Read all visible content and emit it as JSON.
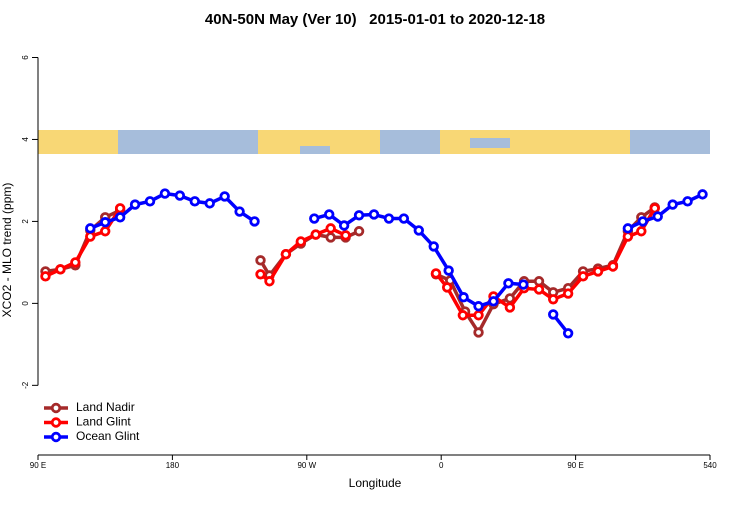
{
  "chart_data": {
    "type": "line",
    "title": "40N-50N May (Ver 10)   2015-01-01 to 2020-12-18",
    "xlabel": "Longitude",
    "ylabel": "XCO2 - MLO trend (ppm)",
    "xlim": [
      90,
      540
    ],
    "ylim": [
      -3.7,
      6.5
    ],
    "xticks": [
      {
        "value": 90,
        "label": "90 E"
      },
      180,
      {
        "value": 270,
        "label": "90 W"
      },
      {
        "value": 360,
        "label": "0"
      },
      {
        "value": 450,
        "label": "90 E"
      },
      540
    ],
    "yticks": [
      -2,
      0,
      2,
      4,
      6
    ],
    "legend": "bottom-left",
    "series": [
      {
        "name": "Land Nadir",
        "color": "#a52a2a",
        "x": [
          95,
          105,
          115,
          125,
          135,
          145,
          190,
          239,
          245,
          256,
          266,
          276,
          286,
          296,
          305,
          330,
          356.5,
          366,
          376,
          385,
          395,
          406,
          415.5,
          425.5,
          435,
          445,
          455,
          465,
          475,
          485,
          494,
          503
        ],
        "values": [
          0.78,
          0.83,
          0.93,
          1.78,
          2.1,
          2.27,
          null,
          1.05,
          0.68,
          1.2,
          1.46,
          1.68,
          1.61,
          1.61,
          1.76,
          null,
          0.71,
          0.56,
          -0.2,
          -0.71,
          -0.02,
          0.12,
          0.54,
          0.54,
          0.27,
          0.37,
          0.78,
          0.85,
          0.93,
          1.76,
          2.1,
          2.34
        ]
      },
      {
        "name": "Land Glint",
        "color": "#ff0000",
        "x": [
          95,
          105,
          115,
          125,
          135,
          145,
          190,
          239,
          245,
          256,
          266,
          276,
          286,
          296,
          330,
          356.5,
          364,
          374.5,
          385,
          395,
          406,
          415.5,
          425.5,
          435,
          445,
          455,
          465,
          475,
          485,
          494,
          503
        ],
        "values": [
          0.66,
          0.83,
          1.0,
          1.63,
          1.76,
          2.32,
          null,
          0.71,
          0.54,
          1.2,
          1.51,
          1.68,
          1.83,
          1.66,
          null,
          0.73,
          0.39,
          -0.29,
          -0.29,
          0.17,
          -0.1,
          0.37,
          0.34,
          0.1,
          0.24,
          0.66,
          0.78,
          0.9,
          1.63,
          1.76,
          2.32
        ]
      },
      {
        "name": "Ocean Glint",
        "color": "#0000ff",
        "x": [
          125,
          135,
          145,
          155,
          165,
          175,
          185,
          195,
          205,
          215,
          225,
          235,
          255,
          275,
          285,
          295,
          305,
          315,
          325,
          335,
          345,
          355,
          365,
          375,
          385,
          395,
          405,
          415,
          425,
          435,
          445,
          465,
          485,
          495,
          505,
          515,
          525,
          535
        ],
        "values": [
          1.83,
          1.98,
          2.1,
          2.41,
          2.49,
          2.68,
          2.63,
          2.49,
          2.44,
          2.61,
          2.24,
          2.0,
          null,
          2.07,
          2.17,
          1.9,
          2.15,
          2.17,
          2.07,
          2.07,
          1.78,
          1.39,
          0.8,
          0.15,
          -0.07,
          0.05,
          0.49,
          0.46,
          null,
          -0.27,
          -0.73,
          null,
          1.83,
          2.0,
          2.12,
          2.41,
          2.49,
          2.66
        ]
      }
    ]
  }
}
